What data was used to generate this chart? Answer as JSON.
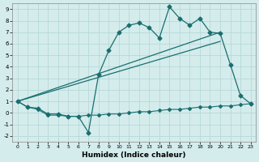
{
  "xlabel": "Humidex (Indice chaleur)",
  "xlim": [
    -0.5,
    23.5
  ],
  "ylim": [
    -2.5,
    9.5
  ],
  "xticks": [
    0,
    1,
    2,
    3,
    4,
    5,
    6,
    7,
    8,
    9,
    10,
    11,
    12,
    13,
    14,
    15,
    16,
    17,
    18,
    19,
    20,
    21,
    22,
    23
  ],
  "yticks": [
    -2,
    -1,
    0,
    1,
    2,
    3,
    4,
    5,
    6,
    7,
    8,
    9
  ],
  "bg_color": "#d4ecec",
  "grid_color": "#b8d8d8",
  "line_color": "#1a6e6e",
  "curve_x": [
    0,
    1,
    2,
    3,
    4,
    5,
    6,
    7,
    8,
    9,
    10,
    11,
    12,
    13,
    14,
    15,
    16,
    17,
    18,
    19,
    20,
    21,
    22,
    23
  ],
  "curve_y": [
    1.0,
    0.5,
    0.4,
    -0.1,
    -0.1,
    -0.3,
    -0.3,
    -1.7,
    3.3,
    5.4,
    7.0,
    7.6,
    7.8,
    7.4,
    6.5,
    9.2,
    8.2,
    7.6,
    8.2,
    7.0,
    6.9,
    4.2,
    1.5,
    0.8
  ],
  "flat_x": [
    0,
    1,
    2,
    3,
    4,
    5,
    6,
    7,
    8,
    9,
    10,
    11,
    12,
    13,
    14,
    15,
    16,
    17,
    18,
    19,
    20,
    21,
    22,
    23
  ],
  "flat_y": [
    1.0,
    0.5,
    0.3,
    -0.2,
    -0.2,
    -0.3,
    -0.3,
    -0.2,
    -0.2,
    -0.1,
    -0.1,
    0.0,
    0.1,
    0.1,
    0.2,
    0.3,
    0.3,
    0.4,
    0.5,
    0.5,
    0.6,
    0.6,
    0.7,
    0.8
  ],
  "trend1_x": [
    0,
    20
  ],
  "trend1_y": [
    1.0,
    7.0
  ],
  "trend2_x": [
    0,
    20
  ],
  "trend2_y": [
    1.0,
    6.2
  ]
}
